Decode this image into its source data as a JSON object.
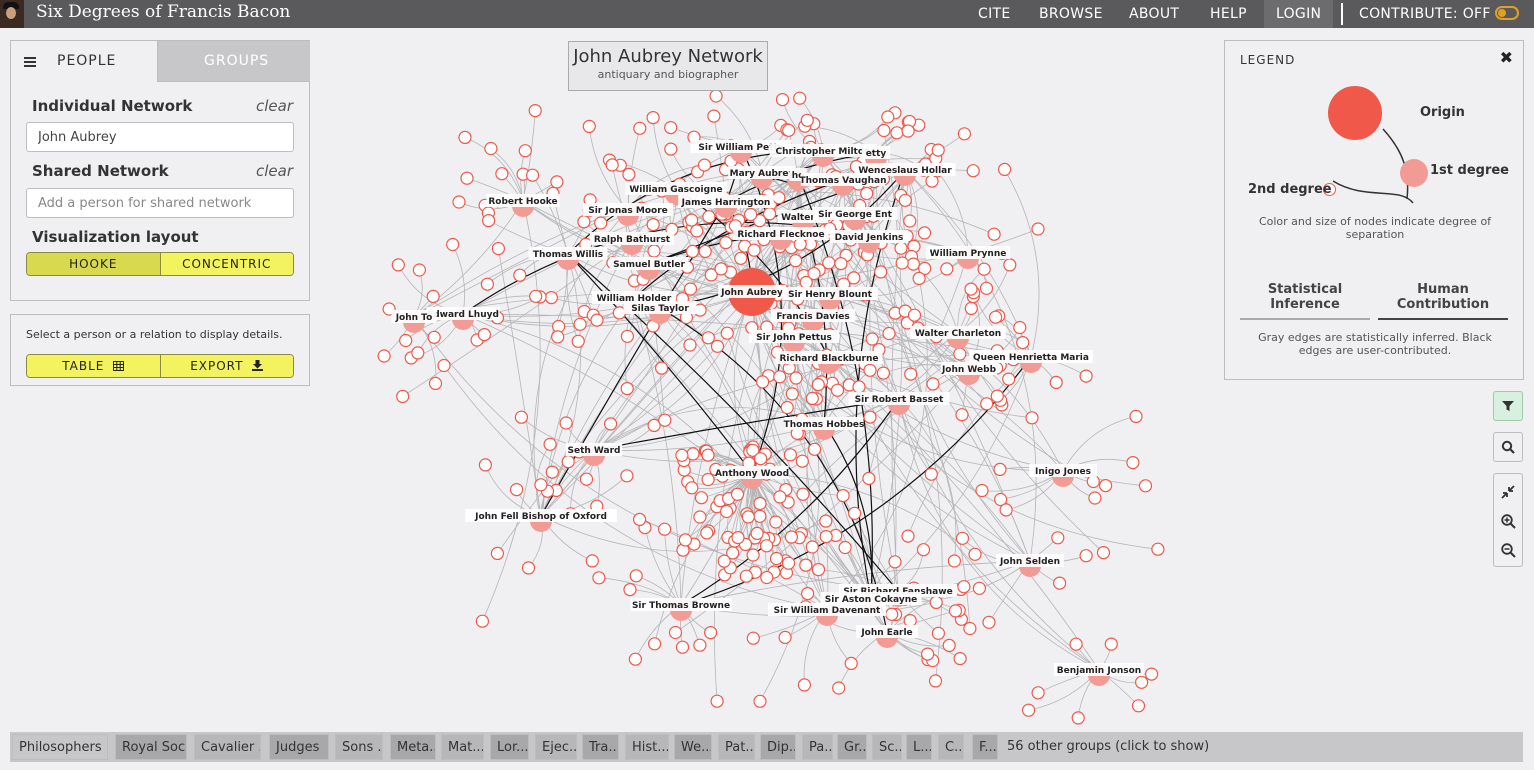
{
  "navbar": {
    "brand": "Six Degrees of Francis Bacon",
    "items": [
      "CITE",
      "BROWSE",
      "ABOUT",
      "HELP",
      "LOGIN"
    ],
    "contribute": "CONTRIBUTE: OFF"
  },
  "left_panel": {
    "tabs": [
      "PEOPLE",
      "GROUPS"
    ],
    "individual_label": "Individual Network",
    "individual_clear": "clear",
    "individual_value": "John Aubrey",
    "shared_label": "Shared Network",
    "shared_clear": "clear",
    "shared_placeholder": "Add a person for shared network",
    "layout_label": "Visualization layout",
    "layout_options": [
      "HOOKE",
      "CONCENTRIC"
    ]
  },
  "detail_panel": {
    "text": "Select a person or a relation to display details.",
    "table_label": "TABLE",
    "export_label": "EXPORT"
  },
  "network_title": {
    "title": "John Aubrey Network",
    "subtitle": "antiquary and biographer"
  },
  "legend": {
    "title": "LEGEND",
    "origin": "Origin",
    "first": "1st degree",
    "second": "2nd degree",
    "description": "Color and size of nodes indicate degree of separation",
    "tab_stat": "Statistical Inference",
    "tab_human": "Human Contribution",
    "edges_note": "Gray edges are statistically inferred. Black edges are user-contributed."
  },
  "colors": {
    "node": "#f0584a",
    "node_light": "#f19b94",
    "accent": "#f3f360",
    "navbar": "#5a5a5c"
  },
  "graph": {
    "origin": "John Aubrey",
    "labels": [
      "Sir William Petty",
      "Christopher Milton",
      "etty",
      "Mary Aubrey",
      "ho",
      "Thomas Vaughan",
      "Wenceslaus Hollar",
      "William Gascoigne",
      "James Harrington",
      "Robert Hooke",
      "Sir Jonas Moore",
      "Walter R",
      "Sir George Ent",
      "Richard Flecknoe",
      "David Jenkins",
      "Ralph Bathurst",
      "Thomas Willis",
      "William Prynne",
      "Samuel Butler",
      "John Aubrey",
      "Sir Henry Blount",
      "William Holder",
      "Silas Taylor",
      "Edward Lhuyd",
      "John To",
      "Francis Davies",
      "Sir John Pettus",
      "Walter Charleton",
      "Richard Blackburne",
      "Queen Henrietta Maria",
      "John Webb",
      "Sir Robert Basset",
      "Thomas Hobbes",
      "Seth Ward",
      "Inigo Jones",
      "Anthony Wood",
      "John Fell Bishop of Oxford",
      "John Selden",
      "Sir Richard Fanshawe",
      "Sir Aston Cokayne",
      "Sir Thomas Browne",
      "Sir William Davenant",
      "John Earle",
      "Benjamin Jonson"
    ]
  },
  "group_bar": {
    "chips": [
      "Philosophers",
      "Royal Soc...",
      "Cavalier ...",
      "Judges",
      "Sons ...",
      "Meta...",
      "Mat...",
      "Lor...",
      "Ejec...",
      "Tra...",
      "Hist...",
      "We...",
      "Pat...",
      "Dip...",
      "Pa...",
      "Gr...",
      "Sc...",
      "L...",
      "C...",
      "F..."
    ],
    "other": "56 other groups (click to show)"
  }
}
